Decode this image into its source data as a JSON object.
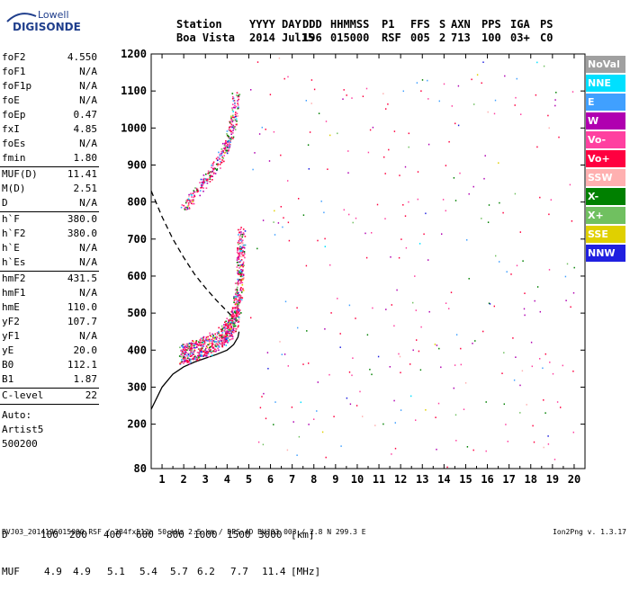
{
  "logo": {
    "line1": "Lowell",
    "line2": "DIGISONDE"
  },
  "header": {
    "labels": [
      "Station",
      "YYYY",
      "DAY",
      "DDD",
      "HHMMSS",
      "P1",
      "FFS",
      "S",
      "AXN",
      "PPS",
      "IGA",
      "PS"
    ],
    "values": [
      "Boa Vista",
      "2014",
      "Jul15",
      "196",
      "015000",
      "RSF",
      "005",
      "2",
      "713",
      "100",
      "03+",
      "C0"
    ]
  },
  "params": [
    {
      "group": 1,
      "name": "foF2",
      "value": "4.550"
    },
    {
      "group": 1,
      "name": "foF1",
      "value": "N/A"
    },
    {
      "group": 1,
      "name": "foF1p",
      "value": "N/A"
    },
    {
      "group": 1,
      "name": "foE",
      "value": "N/A"
    },
    {
      "group": 1,
      "name": "foEp",
      "value": "0.47"
    },
    {
      "group": 1,
      "name": "fxI",
      "value": "4.85"
    },
    {
      "group": 1,
      "name": "foEs",
      "value": "N/A"
    },
    {
      "group": 1,
      "name": "fmin",
      "value": "1.80"
    },
    {
      "group": 2,
      "name": "MUF(D)",
      "value": "11.41"
    },
    {
      "group": 2,
      "name": "M(D)",
      "value": "2.51"
    },
    {
      "group": 2,
      "name": "D",
      "value": "N/A"
    },
    {
      "group": 3,
      "name": "h`F",
      "value": "380.0"
    },
    {
      "group": 3,
      "name": "h`F2",
      "value": "380.0"
    },
    {
      "group": 3,
      "name": "h`E",
      "value": "N/A"
    },
    {
      "group": 3,
      "name": "h`Es",
      "value": "N/A"
    },
    {
      "group": 4,
      "name": "hmF2",
      "value": "431.5"
    },
    {
      "group": 4,
      "name": "hmF1",
      "value": "N/A"
    },
    {
      "group": 4,
      "name": "hmE",
      "value": "110.0"
    },
    {
      "group": 4,
      "name": "yF2",
      "value": "107.7"
    },
    {
      "group": 4,
      "name": "yF1",
      "value": "N/A"
    },
    {
      "group": 4,
      "name": "yE",
      "value": "20.0"
    },
    {
      "group": 4,
      "name": "B0",
      "value": "112.1"
    },
    {
      "group": 4,
      "name": "B1",
      "value": "1.87"
    },
    {
      "group": 5,
      "name": "C-level",
      "value": "22"
    }
  ],
  "auto": {
    "label": "Auto:",
    "artist": "Artist5",
    "version": "500200"
  },
  "legend": [
    {
      "label": "NoVal",
      "color": "#a0a0a0"
    },
    {
      "label": "NNE",
      "color": "#00e0ff"
    },
    {
      "label": "E",
      "color": "#40a0ff"
    },
    {
      "label": "W",
      "color": "#b000b0"
    },
    {
      "label": "Vo-",
      "color": "#ff40a0"
    },
    {
      "label": "Vo+",
      "color": "#ff0040"
    },
    {
      "label": "SSW",
      "color": "#ffb0b0"
    },
    {
      "label": "X-",
      "color": "#008000"
    },
    {
      "label": "X+",
      "color": "#70c060"
    },
    {
      "label": "SSE",
      "color": "#e0d000"
    },
    {
      "label": "NNW",
      "color": "#2020e0"
    }
  ],
  "chart_data": {
    "type": "scatter",
    "title": "",
    "xlabel": "",
    "ylabel": "",
    "xlim": [
      0.5,
      20.5
    ],
    "ylim": [
      80,
      1200
    ],
    "x_ticks": [
      "1",
      "2",
      "3",
      "4",
      "5",
      "6",
      "7",
      "8",
      "9",
      "10",
      "11",
      "12",
      "13",
      "14",
      "15",
      "16",
      "17",
      "18",
      "19",
      "20"
    ],
    "y_ticks": [
      "80",
      "200",
      "300",
      "400",
      "500",
      "600",
      "700",
      "800",
      "900",
      "1000",
      "1100",
      "1200"
    ],
    "grid": false,
    "series": [
      {
        "type": "line",
        "style": "solid",
        "points": [
          [
            0.5,
            240
          ],
          [
            1.0,
            300
          ],
          [
            1.5,
            335
          ],
          [
            2.0,
            355
          ],
          [
            2.5,
            368
          ],
          [
            3.0,
            378
          ],
          [
            3.5,
            388
          ],
          [
            4.0,
            400
          ],
          [
            4.3,
            415
          ],
          [
            4.5,
            435
          ],
          [
            4.55,
            450
          ]
        ]
      },
      {
        "type": "line",
        "style": "dashed",
        "points": [
          [
            0.5,
            830
          ],
          [
            1.0,
            760
          ],
          [
            1.5,
            700
          ],
          [
            2.0,
            650
          ],
          [
            2.5,
            605
          ],
          [
            3.0,
            568
          ],
          [
            3.5,
            535
          ],
          [
            4.0,
            505
          ],
          [
            4.3,
            487
          ],
          [
            4.55,
            472
          ]
        ]
      },
      {
        "type": "trace",
        "name": "F2 ordinary",
        "points": [
          [
            1.9,
            375
          ],
          [
            2.2,
            380
          ],
          [
            2.6,
            388
          ],
          [
            3.0,
            398
          ],
          [
            3.4,
            410
          ],
          [
            3.8,
            425
          ],
          [
            4.1,
            445
          ],
          [
            4.3,
            470
          ],
          [
            4.45,
            510
          ],
          [
            4.55,
            570
          ],
          [
            4.6,
            640
          ],
          [
            4.65,
            700
          ]
        ]
      },
      {
        "type": "trace",
        "name": "F2 second hop",
        "points": [
          [
            2.0,
            780
          ],
          [
            2.4,
            810
          ],
          [
            2.8,
            840
          ],
          [
            3.2,
            870
          ],
          [
            3.6,
            905
          ],
          [
            3.9,
            940
          ],
          [
            4.1,
            975
          ],
          [
            4.25,
            1010
          ],
          [
            4.35,
            1050
          ],
          [
            4.4,
            1090
          ]
        ]
      }
    ]
  },
  "distance_table": {
    "d_label": "D",
    "distances": [
      "100",
      "200",
      "400",
      "600",
      "800",
      "1000",
      "1500",
      "3000"
    ],
    "d_unit": "[km]",
    "muf_label": "MUF",
    "mufs": [
      "4.9",
      "4.9",
      "5.1",
      "5.4",
      "5.7",
      "6.2",
      "7.7",
      "11.4"
    ],
    "muf_unit": "[MHz]"
  },
  "footer": {
    "file_info": "BVJ03_2014196015000.RSF / 384fx512h 50 kHz 2.5 km / DPS-4D BVJ03 003 / 2.8 N 299.3 E",
    "program": "Ion2Png v. 1.3.17"
  }
}
